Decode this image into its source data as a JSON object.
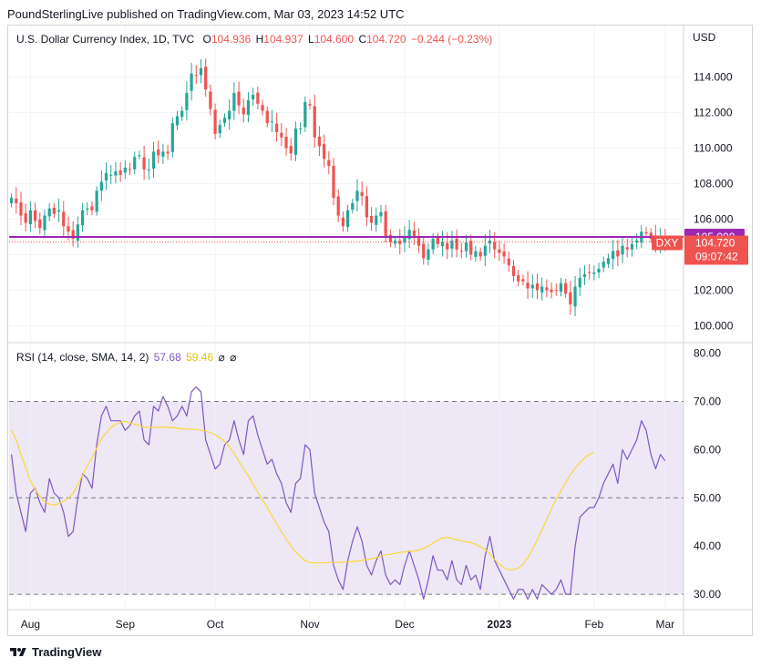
{
  "header": {
    "published": "PoundSterlingLive published on TradingView.com, Mar 03, 2023 14:52 UTC"
  },
  "legend": {
    "symbol": "U.S. Dollar Currency Index, 1D, TVC",
    "o_label": "O",
    "o_value": "104.936",
    "h_label": "H",
    "h_value": "104.937",
    "l_label": "L",
    "l_value": "104.600",
    "c_label": "C",
    "c_value": "104.720",
    "change": "−0.244 (−0.23%)"
  },
  "rsi_legend": {
    "label": "RSI (14, close, SMA, 14, 2)",
    "rsi_value": "57.68",
    "sma_value": "59.46",
    "eye1": "⌀",
    "eye2": "⌀"
  },
  "footer": {
    "brand": "TradingView"
  },
  "colors": {
    "up": "#26a69a",
    "down": "#ef5350",
    "level": "#9c27b0",
    "rsi": "#7e57c2",
    "rsi_ma": "#fdd835",
    "band": "#ede7f6"
  },
  "chart_data": [
    {
      "type": "candlestick",
      "title": "U.S. Dollar Currency Index, 1D, TVC",
      "currency": "USD",
      "ylim": [
        99.1,
        116.9
      ],
      "yticks": [
        "114.000",
        "112.000",
        "110.000",
        "108.000",
        "106.000",
        "102.000",
        "100.000"
      ],
      "xticks": [
        "Aug",
        "Sep",
        "Oct",
        "Nov",
        "Dec",
        "2023",
        "Feb",
        "Mar"
      ],
      "closes": [
        107.2,
        106.9,
        106.2,
        105.8,
        106.5,
        105.9,
        105.5,
        106.2,
        106.6,
        106.3,
        106.5,
        105.6,
        105.3,
        104.9,
        105.7,
        106.5,
        106.6,
        106.5,
        107.6,
        108.1,
        108.6,
        108.5,
        108.7,
        108.5,
        108.9,
        108.8,
        109.5,
        109.6,
        108.8,
        108.8,
        109.8,
        109.6,
        109.8,
        109.7,
        111.4,
        111.8,
        112.1,
        113.1,
        114.2,
        114.1,
        114.5,
        113.3,
        112.2,
        110.8,
        111.3,
        111.7,
        112.1,
        113.1,
        112.4,
        111.9,
        112.7,
        113.0,
        112.5,
        112.1,
        111.4,
        111.5,
        110.9,
        110.6,
        110.0,
        109.7,
        111.1,
        111.1,
        112.6,
        112.4,
        110.6,
        110.1,
        109.4,
        109.0,
        107.2,
        106.2,
        105.6,
        106.5,
        106.9,
        107.6,
        107.3,
        106.1,
        105.8,
        106.2,
        106.4,
        105.0,
        104.7,
        104.8,
        104.6,
        105.0,
        105.4,
        105.0,
        104.5,
        103.8,
        104.3,
        104.9,
        104.6,
        104.7,
        104.3,
        104.8,
        104.3,
        104.2,
        104.7,
        104.0,
        104.2,
        103.9,
        104.5,
        104.8,
        104.3,
        104.1,
        103.9,
        103.4,
        102.8,
        102.5,
        102.5,
        102.1,
        102.3,
        102.0,
        102.2,
        102.0,
        101.9,
        102.0,
        102.4,
        101.8,
        101.2,
        102.2,
        102.7,
        102.9,
        103.0,
        103.0,
        103.2,
        103.6,
        103.8,
        104.2,
        103.9,
        104.5,
        104.3,
        104.6,
        104.8,
        105.3,
        105.2,
        104.9,
        104.7,
        104.9,
        104.7
      ],
      "current_price": "104.720",
      "countdown": "09:07:42",
      "ticker": "DXY",
      "level_line": "105.000"
    },
    {
      "type": "line",
      "title": "RSI (14, close, SMA, 14, 2)",
      "ylim": [
        27,
        82
      ],
      "yticks": [
        "80.00",
        "70.00",
        "60.00",
        "50.00",
        "40.00",
        "30.00"
      ],
      "band": [
        30,
        70
      ],
      "midline": 50,
      "series": [
        {
          "name": "RSI",
          "values": [
            59,
            51,
            47,
            43,
            51,
            52,
            49,
            47,
            54,
            51,
            50,
            47,
            42,
            43,
            50,
            55,
            54,
            52,
            61,
            67,
            69,
            66,
            66,
            66,
            64,
            65,
            67,
            68,
            62,
            61,
            69,
            68,
            71,
            69,
            66,
            67,
            69,
            67,
            72,
            73,
            72,
            62,
            59,
            56,
            57,
            61,
            62,
            66,
            62,
            59,
            66,
            67,
            63,
            60,
            57,
            58,
            55,
            53,
            49,
            47,
            53,
            54,
            61,
            60,
            51,
            48,
            45,
            43,
            36,
            33,
            31,
            37,
            41,
            44,
            41,
            36,
            34,
            37,
            39,
            34,
            32,
            33,
            32,
            36,
            39,
            36,
            33,
            29,
            33,
            38,
            35,
            35,
            33,
            37,
            33,
            32,
            36,
            33,
            34,
            31,
            38,
            42,
            37,
            35,
            33,
            31,
            29,
            31,
            31,
            29,
            31,
            29,
            32,
            31,
            30,
            31,
            33,
            30,
            30,
            40,
            46,
            47,
            48,
            48,
            50,
            53,
            55,
            57,
            53,
            60,
            58,
            60,
            62,
            66,
            64,
            59,
            56,
            59,
            57.68
          ]
        },
        {
          "name": "RSI-based MA",
          "values": [
            64.0,
            62.0,
            59.0,
            56.2,
            53.5,
            51.8,
            50.3,
            49.2,
            48.7,
            48.5,
            48.8,
            49.3,
            49.9,
            51.0,
            52.7,
            54.7,
            56.6,
            58.4,
            60.3,
            62.2,
            63.5,
            64.6,
            65.3,
            65.7,
            65.9,
            65.6,
            65.3,
            65.0,
            64.7,
            64.6,
            64.6,
            64.7,
            64.7,
            64.6,
            64.6,
            64.5,
            64.3,
            64.3,
            64.2,
            64.2,
            64.0,
            63.9,
            63.5,
            63.1,
            62.5,
            61.7,
            60.6,
            59.2,
            57.6,
            56.0,
            54.5,
            52.9,
            51.2,
            49.6,
            48.0,
            46.3,
            44.6,
            43.0,
            41.5,
            40.0,
            38.8,
            37.8,
            37.0,
            36.6,
            36.5,
            36.5,
            36.5,
            36.6,
            36.6,
            36.6,
            36.7,
            36.7,
            36.8,
            36.9,
            37.0,
            37.2,
            37.4,
            37.6,
            37.9,
            38.2,
            38.3,
            38.5,
            38.7,
            38.8,
            38.9,
            39.0,
            39.2,
            39.5,
            40.0,
            40.6,
            41.2,
            41.7,
            41.8,
            41.6,
            41.3,
            41.1,
            40.9,
            40.7,
            40.4,
            39.9,
            39.3,
            38.3,
            37.2,
            36.2,
            35.5,
            35.1,
            35.1,
            35.4,
            36.2,
            37.6,
            39.3,
            41.3,
            43.4,
            45.5,
            47.7,
            49.7,
            51.5,
            53.2,
            54.8,
            56.2,
            57.3,
            58.3,
            59.0,
            59.46
          ]
        }
      ]
    }
  ]
}
